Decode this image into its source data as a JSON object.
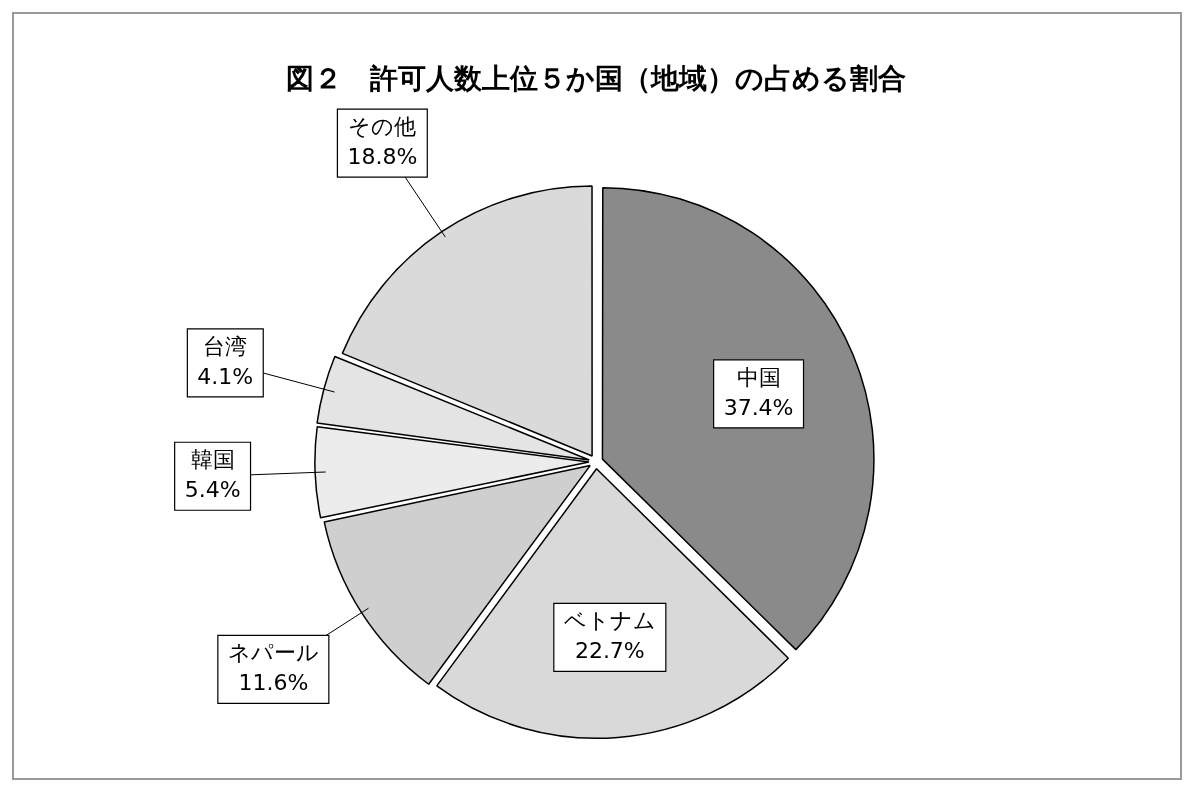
{
  "chart_data": {
    "type": "pie",
    "title": "図２　許可人数上位５か国（地域）の占める割合",
    "categories": [
      "中国",
      "ベトナム",
      "ネパール",
      "韓国",
      "台湾",
      "その他"
    ],
    "values": [
      37.4,
      22.7,
      11.6,
      5.4,
      4.1,
      18.8
    ],
    "value_labels": [
      "37.4%",
      "22.7%",
      "11.6%",
      "5.4%",
      "4.1%",
      "18.8%"
    ],
    "colors": [
      "#8a8a8a",
      "#d9d9d9",
      "#cfcfcf",
      "#ececec",
      "#e4e4e4",
      "#dadada"
    ],
    "legend": false
  }
}
